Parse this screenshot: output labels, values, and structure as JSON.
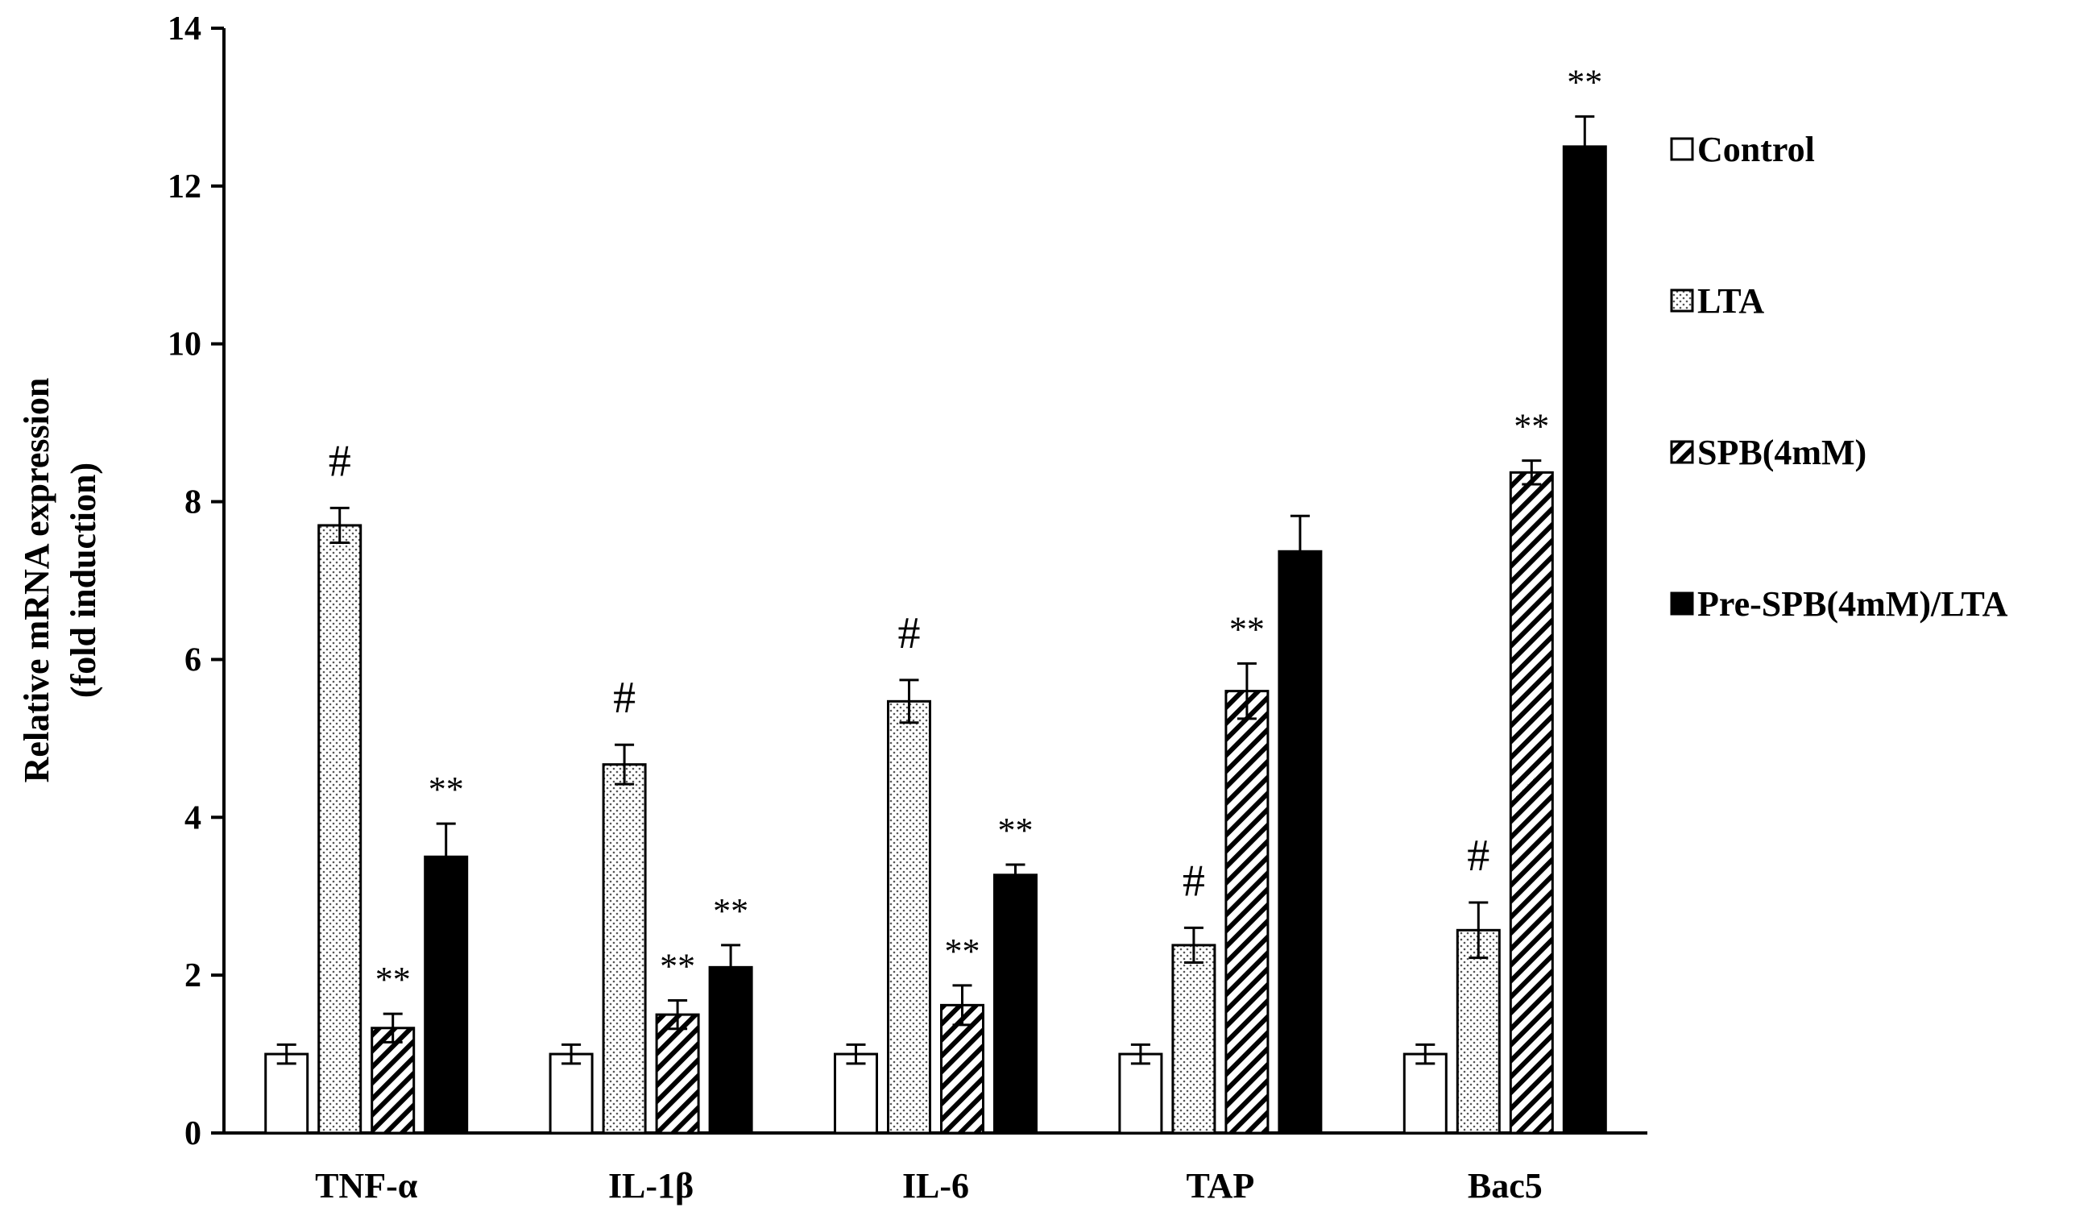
{
  "chart_data": {
    "type": "bar",
    "title": "",
    "xlabel": "",
    "ylabel_lines": [
      "Relative mRNA expression",
      "(fold induction)"
    ],
    "ylim": [
      0,
      14
    ],
    "yticks": [
      0,
      2,
      4,
      6,
      8,
      10,
      12,
      14
    ],
    "legend_position": "right",
    "categories": [
      "TNF-α",
      "IL-1β",
      "IL-6",
      "TAP",
      "Bac5"
    ],
    "series": [
      {
        "name": "Control",
        "pattern": "none",
        "values": [
          1.0,
          1.0,
          1.0,
          1.0,
          1.0
        ],
        "errors": [
          0.12,
          0.12,
          0.12,
          0.12,
          0.12
        ],
        "annotations": [
          "",
          "",
          "",
          "",
          ""
        ]
      },
      {
        "name": "LTA",
        "pattern": "dots",
        "values": [
          7.7,
          4.67,
          5.47,
          2.38,
          2.57
        ],
        "errors": [
          0.22,
          0.25,
          0.27,
          0.22,
          0.35
        ],
        "annotations": [
          "#",
          "#",
          "#",
          "#",
          "#"
        ]
      },
      {
        "name": "SPB(4mM)",
        "pattern": "hatch",
        "values": [
          1.33,
          1.5,
          1.62,
          5.6,
          8.37
        ],
        "errors": [
          0.18,
          0.18,
          0.25,
          0.35,
          0.15
        ],
        "annotations": [
          "**",
          "**",
          "**",
          "**",
          "**"
        ]
      },
      {
        "name": "Pre-SPB(4mM)/LTA",
        "pattern": "solid",
        "values": [
          3.5,
          2.1,
          3.27,
          7.37,
          12.5
        ],
        "errors": [
          0.42,
          0.28,
          0.13,
          0.45,
          0.38
        ],
        "annotations": [
          "**",
          "**",
          "**",
          "",
          "**"
        ]
      }
    ]
  }
}
